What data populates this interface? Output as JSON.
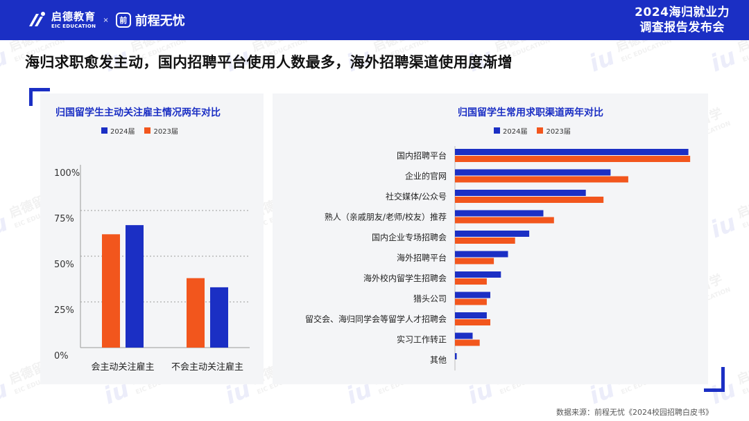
{
  "header": {
    "brand_cn": "启德教育",
    "brand_en": "EIC EDUCATION",
    "brand_x": "×",
    "partner_icon": "前",
    "partner_name": "前程无忧",
    "report_title_line1": "2024海归就业力",
    "report_title_line2": "调查报告发布会",
    "bg_color": "#1b2fc4"
  },
  "page_title": "海归求职愈发主动，国内招聘平台使用人数最多，海外招聘渠道使用度渐增",
  "watermark": {
    "text_cn": "启德留学",
    "text_en": "EIC EDUCATION",
    "mark": "iu"
  },
  "colors": {
    "series_2024": "#1b2fc4",
    "series_2023": "#f2561d"
  },
  "chart_data": [
    {
      "type": "bar",
      "title": "归国留学生主动关注雇主情况两年对比",
      "categories": [
        "会主动关注雇主",
        "不会主动关注雇主"
      ],
      "series": [
        {
          "name": "2024届",
          "values": [
            67,
            33
          ]
        },
        {
          "name": "2023届",
          "values": [
            62,
            38
          ]
        }
      ],
      "yticks": [
        "100%",
        "75%",
        "50%",
        "25%",
        "0%"
      ],
      "ylim": [
        0,
        100
      ],
      "grid": true,
      "legend": "top"
    },
    {
      "type": "bar",
      "orientation": "horizontal",
      "title": "归国留学生常用求职渠道两年对比",
      "categories": [
        "国内招聘平台",
        "企业的官网",
        "社交媒体/公众号",
        "熟人（亲戚朋友/老师/校友）推荐",
        "国内企业专场招聘会",
        "海外招聘平台",
        "海外校内留学生招聘会",
        "猎头公司",
        "留交会、海归同学会等留学人才招聘会",
        "实习工作转正",
        "其他"
      ],
      "series": [
        {
          "name": "2024届",
          "values": [
            66,
            44,
            37,
            25,
            21,
            15,
            13,
            10,
            9,
            5,
            0.5
          ]
        },
        {
          "name": "2023届",
          "values": [
            66.5,
            49,
            42,
            28,
            17,
            11,
            9,
            9,
            10,
            7,
            0
          ]
        }
      ],
      "xlim": [
        0,
        70
      ],
      "legend": "top"
    }
  ],
  "source": "数据来源：前程无忧《2024校园招聘白皮书》"
}
